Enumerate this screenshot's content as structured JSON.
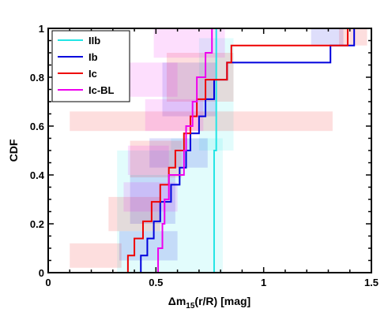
{
  "chart_data": {
    "type": "line",
    "xlabel": "Δm",
    "xlabel_sub": "15",
    "xlabel_tail": "(r/R) [mag]",
    "ylabel": "CDF",
    "xlim": [
      0,
      1.5
    ],
    "ylim": [
      0,
      1
    ],
    "xticks": [
      0,
      0.5,
      1,
      1.5
    ],
    "xtick_labels": [
      "0",
      "0.5",
      "1",
      "1.5"
    ],
    "yticks": [
      0,
      0.2,
      0.4,
      0.6,
      0.8,
      1
    ],
    "ytick_labels": [
      "0",
      "0.2",
      "0.4",
      "0.6",
      "0.8",
      "1"
    ],
    "grid": false,
    "legend_position": "top-left",
    "series": [
      {
        "name": "IIb",
        "color": "#22e5e5",
        "x": [
          0.57,
          0.77,
          0.78
        ],
        "y": [
          0.0,
          0.5,
          1.0
        ]
      },
      {
        "name": "Ib",
        "color": "#0000dd",
        "x": [
          0.41,
          0.43,
          0.46,
          0.49,
          0.52,
          0.57,
          0.61,
          0.64,
          0.66,
          0.7,
          0.73,
          0.77,
          0.83,
          1.31,
          1.42
        ],
        "y": [
          0.0,
          0.07,
          0.14,
          0.21,
          0.29,
          0.36,
          0.43,
          0.5,
          0.57,
          0.64,
          0.71,
          0.79,
          0.86,
          0.93,
          1.0
        ]
      },
      {
        "name": "Ic",
        "color": "#ee0000",
        "x": [
          0.15,
          0.37,
          0.4,
          0.44,
          0.48,
          0.52,
          0.56,
          0.59,
          0.63,
          0.66,
          0.69,
          0.73,
          0.83,
          0.85,
          1.39,
          1.42
        ],
        "y": [
          0.0,
          0.07,
          0.14,
          0.21,
          0.29,
          0.36,
          0.43,
          0.5,
          0.57,
          0.64,
          0.71,
          0.79,
          0.86,
          0.93,
          1.0,
          1.0
        ]
      },
      {
        "name": "Ic-BL",
        "color": "#ee00ee",
        "x": [
          0.42,
          0.51,
          0.53,
          0.54,
          0.56,
          0.63,
          0.64,
          0.67,
          0.69,
          0.73,
          0.76
        ],
        "y": [
          0.0,
          0.1,
          0.2,
          0.3,
          0.4,
          0.5,
          0.6,
          0.7,
          0.8,
          0.9,
          1.0
        ]
      }
    ],
    "error_boxes": [
      {
        "series": "IIb",
        "x0": 0.32,
        "x1": 0.57,
        "y0": 0.0,
        "y1": 0.5
      },
      {
        "series": "IIb",
        "x0": 0.57,
        "x1": 0.81,
        "y0": 0.0,
        "y1": 0.55
      },
      {
        "series": "IIb",
        "x0": 0.7,
        "x1": 0.86,
        "y0": 0.5,
        "y1": 0.96
      },
      {
        "series": "Ib",
        "x0": 0.33,
        "x1": 0.6,
        "y0": 0.05,
        "y1": 0.17
      },
      {
        "series": "Ib",
        "x0": 0.38,
        "x1": 0.59,
        "y0": 0.2,
        "y1": 0.4
      },
      {
        "series": "Ib",
        "x0": 0.47,
        "x1": 0.74,
        "y0": 0.43,
        "y1": 0.55
      },
      {
        "series": "Ib",
        "x0": 0.53,
        "x1": 0.78,
        "y0": 0.64,
        "y1": 0.86
      },
      {
        "series": "Ib",
        "x0": 1.22,
        "x1": 1.37,
        "y0": 0.93,
        "y1": 1.0
      },
      {
        "series": "Ic",
        "x0": 0.1,
        "x1": 0.34,
        "y0": 0.02,
        "y1": 0.12
      },
      {
        "series": "Ic",
        "x0": 0.28,
        "x1": 0.52,
        "y0": 0.17,
        "y1": 0.31
      },
      {
        "series": "Ic",
        "x0": 0.38,
        "x1": 0.62,
        "y0": 0.39,
        "y1": 0.54
      },
      {
        "series": "Ic",
        "x0": 0.1,
        "x1": 1.32,
        "y0": 0.58,
        "y1": 0.66
      },
      {
        "series": "Ic",
        "x0": 0.55,
        "x1": 0.86,
        "y0": 0.7,
        "y1": 0.9
      },
      {
        "series": "Ic",
        "x0": 1.35,
        "x1": 1.48,
        "y0": 0.93,
        "y1": 1.0
      },
      {
        "series": "Ic-BL",
        "x0": 0.23,
        "x1": 0.6,
        "y0": 0.72,
        "y1": 0.86
      },
      {
        "series": "Ic-BL",
        "x0": 0.37,
        "x1": 0.56,
        "y0": 0.4,
        "y1": 0.52
      },
      {
        "series": "Ic-BL",
        "x0": 0.45,
        "x1": 0.72,
        "y0": 0.58,
        "y1": 0.71
      },
      {
        "series": "Ic-BL",
        "x0": 0.49,
        "x1": 0.82,
        "y0": 0.88,
        "y1": 1.0
      },
      {
        "series": "Ic-BL",
        "x0": 0.35,
        "x1": 0.6,
        "y0": 0.25,
        "y1": 0.37
      }
    ]
  }
}
